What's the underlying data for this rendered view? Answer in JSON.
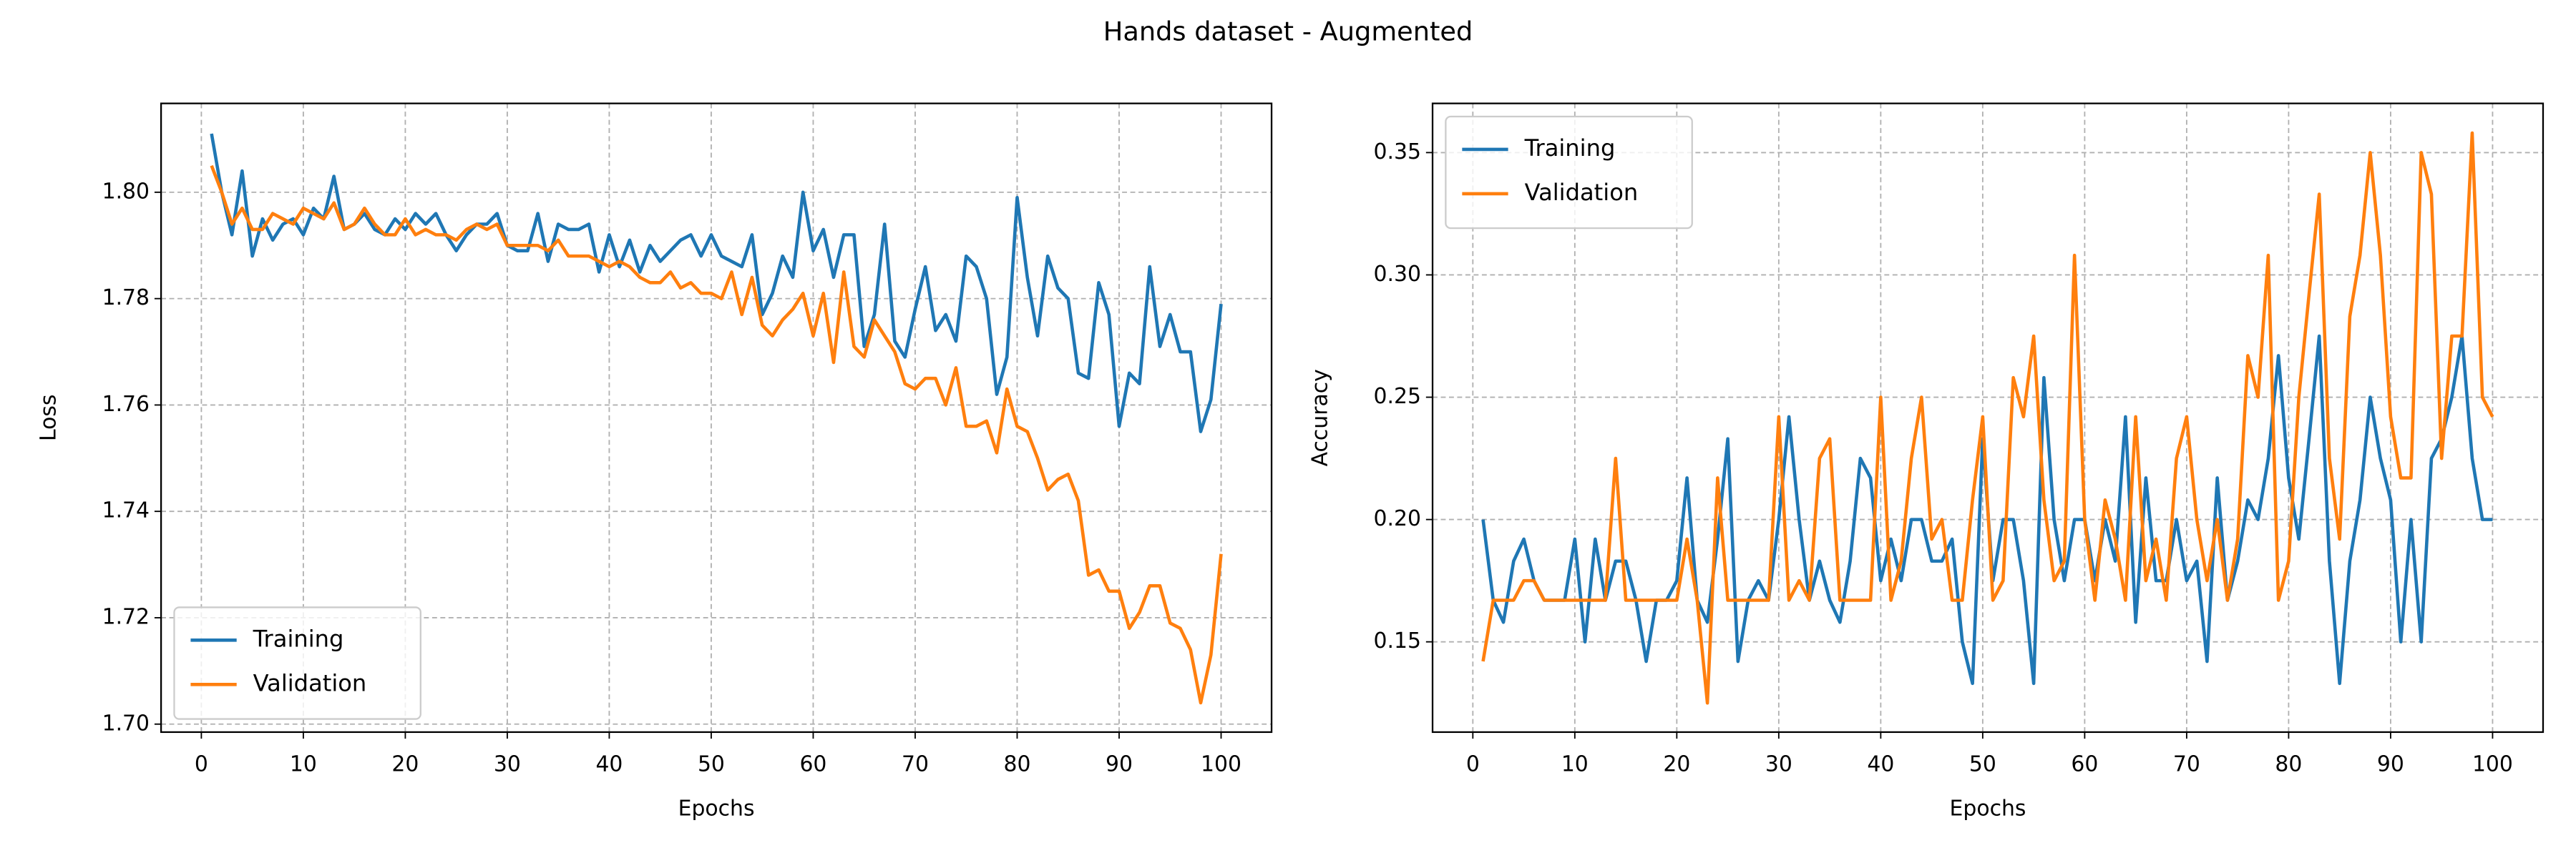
{
  "title": "Hands dataset - Augmented",
  "chart_data": [
    {
      "type": "line",
      "xlabel": "Epochs",
      "ylabel": "Loss",
      "grid": true,
      "legend": "lower left",
      "xlim": [
        -3.95,
        104.95
      ],
      "ylim": [
        1.6985,
        1.8167
      ],
      "xticks": [
        0,
        10,
        20,
        30,
        40,
        50,
        60,
        70,
        80,
        90,
        100
      ],
      "yticks": [
        {
          "value": 1.7,
          "label": "1.70"
        },
        1.72,
        1.74,
        1.76,
        1.78,
        {
          "value": 1.8,
          "label": "1.80"
        }
      ],
      "x": [
        1,
        2,
        3,
        4,
        5,
        6,
        7,
        8,
        9,
        10,
        11,
        12,
        13,
        14,
        15,
        16,
        17,
        18,
        19,
        20,
        21,
        22,
        23,
        24,
        25,
        26,
        27,
        28,
        29,
        30,
        31,
        32,
        33,
        34,
        35,
        36,
        37,
        38,
        39,
        40,
        41,
        42,
        43,
        44,
        45,
        46,
        47,
        48,
        49,
        50,
        51,
        52,
        53,
        54,
        55,
        56,
        57,
        58,
        59,
        60,
        61,
        62,
        63,
        64,
        65,
        66,
        67,
        68,
        69,
        70,
        71,
        72,
        73,
        74,
        75,
        76,
        77,
        78,
        79,
        80,
        81,
        82,
        83,
        84,
        85,
        86,
        87,
        88,
        89,
        90,
        91,
        92,
        93,
        94,
        95,
        96,
        97,
        98,
        99,
        100
      ],
      "series": [
        {
          "name": "Training",
          "color": "#1f77b4",
          "values": [
            1.811,
            1.8,
            1.792,
            1.804,
            1.788,
            1.795,
            1.791,
            1.794,
            1.795,
            1.792,
            1.797,
            1.795,
            1.803,
            1.793,
            1.794,
            1.796,
            1.793,
            1.792,
            1.795,
            1.793,
            1.796,
            1.794,
            1.796,
            1.792,
            1.789,
            1.792,
            1.794,
            1.794,
            1.796,
            1.79,
            1.789,
            1.789,
            1.796,
            1.787,
            1.794,
            1.793,
            1.793,
            1.794,
            1.785,
            1.792,
            1.786,
            1.791,
            1.785,
            1.79,
            1.787,
            1.789,
            1.791,
            1.792,
            1.788,
            1.792,
            1.788,
            1.787,
            1.786,
            1.792,
            1.777,
            1.781,
            1.788,
            1.784,
            1.8,
            1.789,
            1.793,
            1.784,
            1.792,
            1.792,
            1.771,
            1.777,
            1.794,
            1.772,
            1.769,
            1.778,
            1.786,
            1.774,
            1.777,
            1.772,
            1.788,
            1.786,
            1.78,
            1.762,
            1.769,
            1.799,
            1.784,
            1.773,
            1.788,
            1.782,
            1.78,
            1.766,
            1.765,
            1.783,
            1.777,
            1.756,
            1.766,
            1.764,
            1.786,
            1.771,
            1.777,
            1.77,
            1.77,
            1.755,
            1.761,
            1.779
          ]
        },
        {
          "name": "Validation",
          "color": "#ff7f0e",
          "values": [
            1.805,
            1.8,
            1.794,
            1.797,
            1.793,
            1.793,
            1.796,
            1.795,
            1.794,
            1.797,
            1.796,
            1.795,
            1.798,
            1.793,
            1.794,
            1.797,
            1.794,
            1.792,
            1.792,
            1.795,
            1.792,
            1.793,
            1.792,
            1.792,
            1.791,
            1.793,
            1.794,
            1.793,
            1.794,
            1.79,
            1.79,
            1.79,
            1.79,
            1.789,
            1.791,
            1.788,
            1.788,
            1.788,
            1.787,
            1.786,
            1.787,
            1.786,
            1.784,
            1.783,
            1.783,
            1.785,
            1.782,
            1.783,
            1.781,
            1.781,
            1.78,
            1.785,
            1.777,
            1.784,
            1.775,
            1.773,
            1.776,
            1.778,
            1.781,
            1.773,
            1.781,
            1.768,
            1.785,
            1.771,
            1.769,
            1.776,
            1.773,
            1.77,
            1.764,
            1.763,
            1.765,
            1.765,
            1.76,
            1.767,
            1.756,
            1.756,
            1.757,
            1.751,
            1.763,
            1.756,
            1.755,
            1.75,
            1.744,
            1.746,
            1.747,
            1.742,
            1.728,
            1.729,
            1.725,
            1.725,
            1.718,
            1.721,
            1.726,
            1.726,
            1.719,
            1.718,
            1.714,
            1.704,
            1.713,
            1.732
          ]
        }
      ]
    },
    {
      "type": "line",
      "xlabel": "Epochs",
      "ylabel": "Accuracy",
      "grid": true,
      "legend": "upper left",
      "xlim": [
        -3.95,
        104.95
      ],
      "ylim": [
        0.1131,
        0.3701
      ],
      "xticks": [
        0,
        10,
        20,
        30,
        40,
        50,
        60,
        70,
        80,
        90,
        100
      ],
      "yticks": [
        0.15,
        {
          "value": 0.2,
          "label": "0.20"
        },
        0.25,
        {
          "value": 0.3,
          "label": "0.30"
        },
        0.35
      ],
      "x": [
        1,
        2,
        3,
        4,
        5,
        6,
        7,
        8,
        9,
        10,
        11,
        12,
        13,
        14,
        15,
        16,
        17,
        18,
        19,
        20,
        21,
        22,
        23,
        24,
        25,
        26,
        27,
        28,
        29,
        30,
        31,
        32,
        33,
        34,
        35,
        36,
        37,
        38,
        39,
        40,
        41,
        42,
        43,
        44,
        45,
        46,
        47,
        48,
        49,
        50,
        51,
        52,
        53,
        54,
        55,
        56,
        57,
        58,
        59,
        60,
        61,
        62,
        63,
        64,
        65,
        66,
        67,
        68,
        69,
        70,
        71,
        72,
        73,
        74,
        75,
        76,
        77,
        78,
        79,
        80,
        81,
        82,
        83,
        84,
        85,
        86,
        87,
        88,
        89,
        90,
        91,
        92,
        93,
        94,
        95,
        96,
        97,
        98,
        99,
        100
      ],
      "series": [
        {
          "name": "Training",
          "color": "#1f77b4",
          "values": [
            0.2,
            0.167,
            0.158,
            0.183,
            0.192,
            0.175,
            0.167,
            0.167,
            0.167,
            0.192,
            0.15,
            0.192,
            0.167,
            0.183,
            0.183,
            0.167,
            0.142,
            0.167,
            0.167,
            0.175,
            0.217,
            0.167,
            0.158,
            0.192,
            0.233,
            0.142,
            0.167,
            0.175,
            0.167,
            0.2,
            0.242,
            0.2,
            0.167,
            0.183,
            0.167,
            0.158,
            0.183,
            0.225,
            0.217,
            0.175,
            0.192,
            0.175,
            0.2,
            0.2,
            0.183,
            0.183,
            0.192,
            0.15,
            0.133,
            0.233,
            0.175,
            0.2,
            0.2,
            0.175,
            0.133,
            0.258,
            0.2,
            0.175,
            0.2,
            0.2,
            0.175,
            0.2,
            0.183,
            0.242,
            0.158,
            0.217,
            0.175,
            0.175,
            0.2,
            0.175,
            0.183,
            0.142,
            0.217,
            0.167,
            0.183,
            0.208,
            0.2,
            0.225,
            0.267,
            0.217,
            0.192,
            0.233,
            0.275,
            0.183,
            0.133,
            0.183,
            0.208,
            0.25,
            0.225,
            0.208,
            0.15,
            0.2,
            0.15,
            0.225,
            0.233,
            0.25,
            0.275,
            0.225,
            0.2,
            0.2
          ]
        },
        {
          "name": "Validation",
          "color": "#ff7f0e",
          "values": [
            0.142,
            0.167,
            0.167,
            0.167,
            0.175,
            0.175,
            0.167,
            0.167,
            0.167,
            0.167,
            0.167,
            0.167,
            0.167,
            0.225,
            0.167,
            0.167,
            0.167,
            0.167,
            0.167,
            0.167,
            0.192,
            0.167,
            0.125,
            0.217,
            0.167,
            0.167,
            0.167,
            0.167,
            0.167,
            0.242,
            0.167,
            0.175,
            0.167,
            0.225,
            0.233,
            0.167,
            0.167,
            0.167,
            0.167,
            0.25,
            0.167,
            0.183,
            0.225,
            0.25,
            0.192,
            0.2,
            0.167,
            0.167,
            0.208,
            0.242,
            0.167,
            0.175,
            0.258,
            0.242,
            0.275,
            0.208,
            0.175,
            0.183,
            0.308,
            0.2,
            0.167,
            0.208,
            0.192,
            0.167,
            0.242,
            0.175,
            0.192,
            0.167,
            0.225,
            0.242,
            0.2,
            0.175,
            0.2,
            0.167,
            0.192,
            0.267,
            0.25,
            0.308,
            0.167,
            0.183,
            0.25,
            0.292,
            0.333,
            0.225,
            0.192,
            0.283,
            0.308,
            0.35,
            0.308,
            0.242,
            0.217,
            0.217,
            0.35,
            0.333,
            0.225,
            0.275,
            0.275,
            0.358,
            0.25,
            0.242
          ]
        }
      ]
    }
  ]
}
